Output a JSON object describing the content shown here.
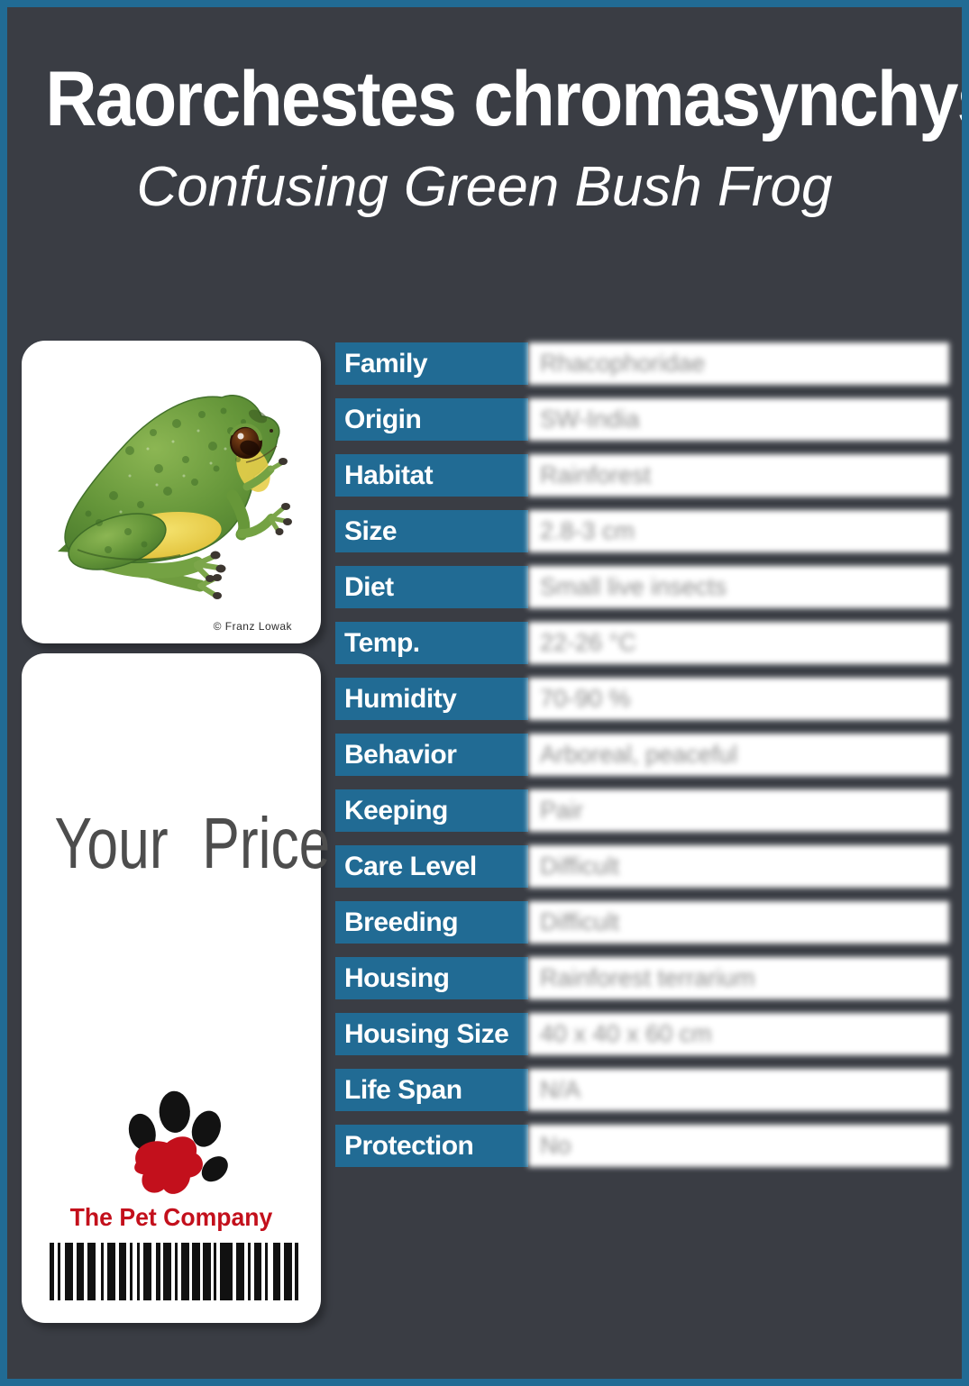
{
  "header": {
    "title": "Raorchestes chromasynchysi",
    "subtitle": "Confusing Green Bush Frog"
  },
  "photo": {
    "credit": "© Franz Lowak"
  },
  "price_card": {
    "label": "Your Price",
    "company": "The Pet Company"
  },
  "table": {
    "rows": [
      {
        "label": "Family",
        "value": "Rhacophoridae"
      },
      {
        "label": "Origin",
        "value": "SW-India"
      },
      {
        "label": "Habitat",
        "value": "Rainforest"
      },
      {
        "label": "Size",
        "value": "2.8-3 cm"
      },
      {
        "label": "Diet",
        "value": "Small live insects"
      },
      {
        "label": "Temp.",
        "value": "22-26 °C"
      },
      {
        "label": "Humidity",
        "value": "70-90 %"
      },
      {
        "label": "Behavior",
        "value": "Arboreal, peaceful"
      },
      {
        "label": "Keeping",
        "value": "Pair"
      },
      {
        "label": "Care Level",
        "value": "Difficult"
      },
      {
        "label": "Breeding",
        "value": "Difficult"
      },
      {
        "label": "Housing",
        "value": "Rainforest terrarium"
      },
      {
        "label": "Housing Size",
        "value": "40 x 40 x 60 cm"
      },
      {
        "label": "Life Span",
        "value": "N/A"
      },
      {
        "label": "Protection",
        "value": "No"
      }
    ]
  },
  "colors": {
    "accent": "#216b94",
    "background": "#3a3d44",
    "logo_red": "#c3101c",
    "card_white": "#ffffff"
  }
}
